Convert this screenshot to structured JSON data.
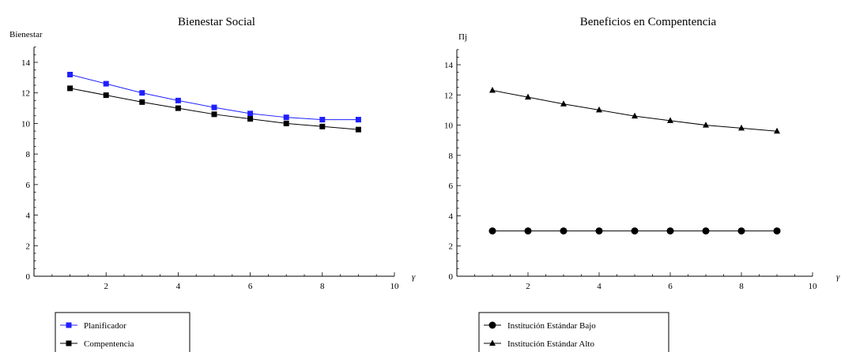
{
  "chart_data": [
    {
      "type": "line",
      "title": "Bienestar Social",
      "xlabel": "γ",
      "ylabel": "Bienestar",
      "xlim": [
        0.5,
        10
      ],
      "ylim": [
        0,
        15
      ],
      "x_ticks": [
        "2",
        "4",
        "6",
        "8",
        "10"
      ],
      "y_ticks": [
        "2",
        "4",
        "6",
        "8",
        "10",
        "12",
        "14"
      ],
      "legend_position": "bottom-left",
      "x": [
        1,
        2,
        3,
        4,
        5,
        6,
        7,
        8,
        9
      ],
      "series": [
        {
          "name": "Planificador",
          "color": "#1f1fff",
          "marker": "square",
          "values": [
            13.2,
            12.6,
            12.0,
            11.5,
            11.05,
            10.65,
            10.4,
            10.25,
            10.25
          ]
        },
        {
          "name": "Compentencia",
          "color": "#000000",
          "marker": "square",
          "values": [
            12.3,
            11.85,
            11.4,
            11.0,
            10.6,
            10.3,
            10.0,
            9.8,
            9.6
          ]
        }
      ]
    },
    {
      "type": "line",
      "title": "Beneficios en Compentencia",
      "xlabel": "γ",
      "ylabel": "Πj",
      "xlim": [
        0.5,
        10
      ],
      "ylim": [
        0,
        15
      ],
      "x_ticks": [
        "2",
        "4",
        "6",
        "8",
        "10"
      ],
      "y_ticks": [
        "2",
        "4",
        "6",
        "8",
        "10",
        "12",
        "14"
      ],
      "legend_position": "bottom-left",
      "x": [
        1,
        2,
        3,
        4,
        5,
        6,
        7,
        8,
        9
      ],
      "series": [
        {
          "name": "Institución Estándar Bajo",
          "color": "#000000",
          "marker": "circle",
          "values": [
            3,
            3,
            3,
            3,
            3,
            3,
            3,
            3,
            3
          ]
        },
        {
          "name": "Institución Estándar Alto",
          "color": "#000000",
          "marker": "triangle",
          "values": [
            12.3,
            11.85,
            11.4,
            11.0,
            10.6,
            10.3,
            10.0,
            9.8,
            9.6
          ]
        }
      ]
    }
  ]
}
